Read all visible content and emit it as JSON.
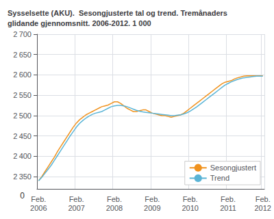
{
  "chart_data": {
    "type": "line",
    "title": "Sysselsette (AKU).  Sesongjusterte tal og trend. Tremånaders\nglidande gjennomsnitt. 2006-2012. 1 000",
    "categories": [
      "Feb.\n2006",
      null,
      null,
      null,
      null,
      null,
      null,
      null,
      null,
      null,
      null,
      null,
      "Feb.\n2007",
      null,
      null,
      null,
      null,
      null,
      null,
      null,
      null,
      null,
      null,
      null,
      "Feb.\n2008",
      null,
      null,
      null,
      null,
      null,
      null,
      null,
      null,
      null,
      null,
      null,
      "Feb.\n2009",
      null,
      null,
      null,
      null,
      null,
      null,
      null,
      null,
      null,
      null,
      null,
      "Feb.\n2010",
      null,
      null,
      null,
      null,
      null,
      null,
      null,
      null,
      null,
      null,
      null,
      "Feb.\n2011",
      null,
      null,
      null,
      null,
      null,
      null,
      null,
      null,
      null,
      null,
      "Feb.\n2012"
    ],
    "series": [
      {
        "name": "Sesongjustert",
        "color": "#f0921e",
        "values": [
          2340,
          2350,
          2362,
          2374,
          2386,
          2398,
          2412,
          2424,
          2436,
          2448,
          2460,
          2472,
          2482,
          2490,
          2496,
          2502,
          2506,
          2510,
          2514,
          2518,
          2522,
          2524,
          2526,
          2530,
          2534,
          2534,
          2530,
          2524,
          2518,
          2514,
          2510,
          2510,
          2512,
          2514,
          2514,
          2510,
          2506,
          2504,
          2502,
          2500,
          2500,
          2498,
          2496,
          2498,
          2500,
          2502,
          2506,
          2512,
          2518,
          2524,
          2530,
          2536,
          2542,
          2548,
          2554,
          2560,
          2566,
          2572,
          2578,
          2582,
          2584,
          2586,
          2590,
          2593,
          2595,
          2597,
          2598,
          2598,
          2598,
          2598,
          2598,
          2598
        ]
      },
      {
        "name": "Trend",
        "color": "#5ab4d6",
        "values": [
          2340,
          2348,
          2358,
          2368,
          2378,
          2390,
          2402,
          2414,
          2426,
          2438,
          2450,
          2461,
          2472,
          2481,
          2488,
          2494,
          2499,
          2503,
          2506,
          2508,
          2510,
          2514,
          2518,
          2522,
          2524,
          2525,
          2525,
          2524,
          2522,
          2519,
          2516,
          2513,
          2511,
          2509,
          2508,
          2507,
          2506,
          2505,
          2504,
          2503,
          2502,
          2501,
          2500,
          2500,
          2501,
          2502,
          2504,
          2507,
          2511,
          2516,
          2521,
          2527,
          2533,
          2539,
          2545,
          2551,
          2557,
          2563,
          2569,
          2575,
          2579,
          2583,
          2586,
          2589,
          2591,
          2593,
          2594,
          2595,
          2596,
          2597,
          2597,
          2597
        ]
      }
    ],
    "ylim": [
      2320,
      2700
    ],
    "yticks": [
      {
        "value": 2350,
        "label": "2 350"
      },
      {
        "value": 2400,
        "label": "2 400"
      },
      {
        "value": 2450,
        "label": "2 450"
      },
      {
        "value": 2500,
        "label": "2 500"
      },
      {
        "value": 2550,
        "label": "2 550"
      },
      {
        "value": 2600,
        "label": "2 600"
      },
      {
        "value": 2650,
        "label": "2 650"
      },
      {
        "value": 2700,
        "label": "2 700"
      }
    ],
    "annotations": [
      "0"
    ],
    "grid": true,
    "legend": "lower right"
  }
}
